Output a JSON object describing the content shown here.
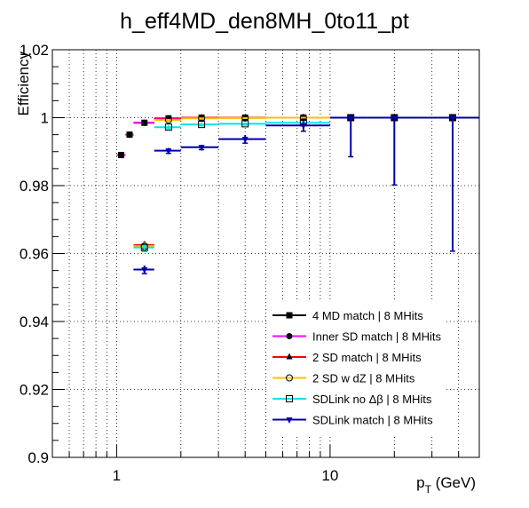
{
  "chart_data": {
    "type": "scatter",
    "title": "h_eff4MD_den8MH_0to11_pt",
    "xlabel_main": "p",
    "xlabel_sub": "T",
    "xlabel_unit": " (GeV)",
    "ylabel": "Efficiency",
    "xscale": "log",
    "xlim": [
      0.5,
      50
    ],
    "ylim": [
      0.9,
      1.02
    ],
    "grid": true,
    "legend_position": "bottom-right",
    "x_tick_labels": [
      {
        "value": 1,
        "label": "1"
      },
      {
        "value": 10,
        "label": "10"
      }
    ],
    "y_tick_labels": [
      {
        "value": 0.9,
        "label": "0.9"
      },
      {
        "value": 0.92,
        "label": "0.92"
      },
      {
        "value": 0.94,
        "label": "0.94"
      },
      {
        "value": 0.96,
        "label": "0.96"
      },
      {
        "value": 0.98,
        "label": "0.98"
      },
      {
        "value": 1.0,
        "label": "1"
      },
      {
        "value": 1.02,
        "label": "1.02"
      }
    ],
    "series": [
      {
        "name": "4 MD match | 8 MHits",
        "color": "#000000",
        "marker": "square",
        "points": [
          {
            "x": 1.05,
            "xlo": 1.0,
            "xhi": 1.1,
            "y": 0.989,
            "elo": 0.0005,
            "ehi": 0.0005
          },
          {
            "x": 1.15,
            "xlo": 1.1,
            "xhi": 1.2,
            "y": 0.995,
            "elo": 0.0004,
            "ehi": 0.0004
          },
          {
            "x": 1.35,
            "xlo": 1.2,
            "xhi": 1.5,
            "y": 0.9985,
            "elo": 0.0003,
            "ehi": 0.0003
          },
          {
            "x": 1.75,
            "xlo": 1.5,
            "xhi": 2.0,
            "y": 0.9998,
            "elo": 0.0002,
            "ehi": 0.0002
          },
          {
            "x": 2.5,
            "xlo": 2.0,
            "xhi": 3.0,
            "y": 1.0,
            "elo": 0.0002,
            "ehi": 0.0
          },
          {
            "x": 4.0,
            "xlo": 3.0,
            "xhi": 5.0,
            "y": 1.0,
            "elo": 0.0001,
            "ehi": 0.0
          },
          {
            "x": 7.5,
            "xlo": 5.0,
            "xhi": 10.0,
            "y": 1.0,
            "elo": 0.0001,
            "ehi": 0.0
          },
          {
            "x": 12.5,
            "xlo": 10.0,
            "xhi": 15.0,
            "y": 1.0,
            "elo": 0.0,
            "ehi": 0.0
          },
          {
            "x": 20.0,
            "xlo": 15.0,
            "xhi": 25.0,
            "y": 1.0,
            "elo": 0.0,
            "ehi": 0.0
          },
          {
            "x": 37.5,
            "xlo": 25.0,
            "xhi": 50.0,
            "y": 1.0,
            "elo": 0.0,
            "ehi": 0.0
          }
        ]
      },
      {
        "name": "Inner SD match | 8 MHits",
        "color": "#ff00ff",
        "marker": "circle",
        "points": [
          {
            "x": 1.05,
            "xlo": 1.0,
            "xhi": 1.1,
            "y": 0.989,
            "elo": 0.0005,
            "ehi": 0.0005
          },
          {
            "x": 1.15,
            "xlo": 1.1,
            "xhi": 1.2,
            "y": 0.995,
            "elo": 0.0004,
            "ehi": 0.0004
          },
          {
            "x": 1.35,
            "xlo": 1.2,
            "xhi": 1.5,
            "y": 0.9985,
            "elo": 0.0003,
            "ehi": 0.0003
          },
          {
            "x": 1.75,
            "xlo": 1.5,
            "xhi": 2.0,
            "y": 0.9998,
            "elo": 0.0002,
            "ehi": 0.0002
          },
          {
            "x": 2.5,
            "xlo": 2.0,
            "xhi": 3.0,
            "y": 1.0,
            "elo": 0.0002,
            "ehi": 0.0
          },
          {
            "x": 4.0,
            "xlo": 3.0,
            "xhi": 5.0,
            "y": 1.0,
            "elo": 0.0001,
            "ehi": 0.0
          },
          {
            "x": 7.5,
            "xlo": 5.0,
            "xhi": 10.0,
            "y": 1.0,
            "elo": 0.0001,
            "ehi": 0.0
          },
          {
            "x": 12.5,
            "xlo": 10.0,
            "xhi": 15.0,
            "y": 1.0,
            "elo": 0.0,
            "ehi": 0.0
          },
          {
            "x": 20.0,
            "xlo": 15.0,
            "xhi": 25.0,
            "y": 1.0,
            "elo": 0.0,
            "ehi": 0.0
          },
          {
            "x": 37.5,
            "xlo": 25.0,
            "xhi": 50.0,
            "y": 1.0,
            "elo": 0.0,
            "ehi": 0.0
          }
        ]
      },
      {
        "name": "2 SD match | 8 MHits",
        "color": "#ff0000",
        "marker": "triangle-up",
        "points": [
          {
            "x": 1.35,
            "xlo": 1.2,
            "xhi": 1.5,
            "y": 0.9625,
            "elo": 0.0012,
            "ehi": 0.0012
          },
          {
            "x": 1.75,
            "xlo": 1.5,
            "xhi": 2.0,
            "y": 0.9995,
            "elo": 0.0003,
            "ehi": 0.0003
          },
          {
            "x": 2.5,
            "xlo": 2.0,
            "xhi": 3.0,
            "y": 1.0,
            "elo": 0.0002,
            "ehi": 0.0
          },
          {
            "x": 4.0,
            "xlo": 3.0,
            "xhi": 5.0,
            "y": 1.0,
            "elo": 0.0001,
            "ehi": 0.0
          },
          {
            "x": 7.5,
            "xlo": 5.0,
            "xhi": 10.0,
            "y": 1.0,
            "elo": 0.0001,
            "ehi": 0.0
          },
          {
            "x": 12.5,
            "xlo": 10.0,
            "xhi": 15.0,
            "y": 1.0,
            "elo": 0.0,
            "ehi": 0.0
          },
          {
            "x": 20.0,
            "xlo": 15.0,
            "xhi": 25.0,
            "y": 1.0,
            "elo": 0.0,
            "ehi": 0.0
          },
          {
            "x": 37.5,
            "xlo": 25.0,
            "xhi": 50.0,
            "y": 1.0,
            "elo": 0.0,
            "ehi": 0.0
          }
        ]
      },
      {
        "name": "2 SD w dZ | 8 MHits",
        "color": "#ffbf00",
        "marker": "circle-open",
        "points": [
          {
            "x": 1.35,
            "xlo": 1.2,
            "xhi": 1.5,
            "y": 0.9622,
            "elo": 0.0012,
            "ehi": 0.0012
          },
          {
            "x": 1.75,
            "xlo": 1.5,
            "xhi": 2.0,
            "y": 0.9993,
            "elo": 0.0003,
            "ehi": 0.0003
          },
          {
            "x": 2.5,
            "xlo": 2.0,
            "xhi": 3.0,
            "y": 0.9998,
            "elo": 0.0002,
            "ehi": 0.0001
          },
          {
            "x": 4.0,
            "xlo": 3.0,
            "xhi": 5.0,
            "y": 0.9999,
            "elo": 0.0001,
            "ehi": 0.0001
          },
          {
            "x": 7.5,
            "xlo": 5.0,
            "xhi": 10.0,
            "y": 1.0,
            "elo": 0.0001,
            "ehi": 0.0
          },
          {
            "x": 12.5,
            "xlo": 10.0,
            "xhi": 15.0,
            "y": 1.0,
            "elo": 0.0,
            "ehi": 0.0
          },
          {
            "x": 20.0,
            "xlo": 15.0,
            "xhi": 25.0,
            "y": 1.0,
            "elo": 0.0,
            "ehi": 0.0
          },
          {
            "x": 37.5,
            "xlo": 25.0,
            "xhi": 50.0,
            "y": 1.0,
            "elo": 0.0,
            "ehi": 0.0
          }
        ]
      },
      {
        "name": "SDLink no Δβ | 8 MHits",
        "color": "#00e5e5",
        "marker": "square-open",
        "points": [
          {
            "x": 1.35,
            "xlo": 1.2,
            "xhi": 1.5,
            "y": 0.9618,
            "elo": 0.0012,
            "ehi": 0.0012
          },
          {
            "x": 1.75,
            "xlo": 1.5,
            "xhi": 2.0,
            "y": 0.9972,
            "elo": 0.0005,
            "ehi": 0.0005
          },
          {
            "x": 2.5,
            "xlo": 2.0,
            "xhi": 3.0,
            "y": 0.998,
            "elo": 0.0004,
            "ehi": 0.0004
          },
          {
            "x": 4.0,
            "xlo": 3.0,
            "xhi": 5.0,
            "y": 0.9982,
            "elo": 0.0004,
            "ehi": 0.0004
          },
          {
            "x": 7.5,
            "xlo": 5.0,
            "xhi": 10.0,
            "y": 0.9985,
            "elo": 0.0004,
            "ehi": 0.0004
          },
          {
            "x": 12.5,
            "xlo": 10.0,
            "xhi": 15.0,
            "y": 1.0,
            "elo": 0.0,
            "ehi": 0.0
          },
          {
            "x": 20.0,
            "xlo": 15.0,
            "xhi": 25.0,
            "y": 1.0,
            "elo": 0.0,
            "ehi": 0.0
          },
          {
            "x": 37.5,
            "xlo": 25.0,
            "xhi": 50.0,
            "y": 1.0,
            "elo": 0.0,
            "ehi": 0.0
          }
        ]
      },
      {
        "name": "SDLink match | 8 MHits",
        "color": "#0000aa",
        "marker": "triangle-down",
        "points": [
          {
            "x": 1.35,
            "xlo": 1.2,
            "xhi": 1.5,
            "y": 0.9553,
            "elo": 0.0012,
            "ehi": 0.0012
          },
          {
            "x": 1.75,
            "xlo": 1.5,
            "xhi": 2.0,
            "y": 0.9903,
            "elo": 0.0008,
            "ehi": 0.0008
          },
          {
            "x": 2.5,
            "xlo": 2.0,
            "xhi": 3.0,
            "y": 0.9913,
            "elo": 0.0007,
            "ehi": 0.0007
          },
          {
            "x": 4.0,
            "xlo": 3.0,
            "xhi": 5.0,
            "y": 0.9937,
            "elo": 0.0012,
            "ehi": 0.0012
          },
          {
            "x": 7.5,
            "xlo": 5.0,
            "xhi": 10.0,
            "y": 0.9977,
            "elo": 0.0017,
            "ehi": 0.0012
          },
          {
            "x": 12.5,
            "xlo": 10.0,
            "xhi": 15.0,
            "y": 1.0,
            "elo": 0.0115,
            "ehi": 0.0
          },
          {
            "x": 20.0,
            "xlo": 15.0,
            "xhi": 25.0,
            "y": 1.0,
            "elo": 0.0198,
            "ehi": 0.0
          },
          {
            "x": 37.5,
            "xlo": 25.0,
            "xhi": 50.0,
            "y": 1.0,
            "elo": 0.0393,
            "ehi": 0.0
          }
        ]
      }
    ]
  }
}
